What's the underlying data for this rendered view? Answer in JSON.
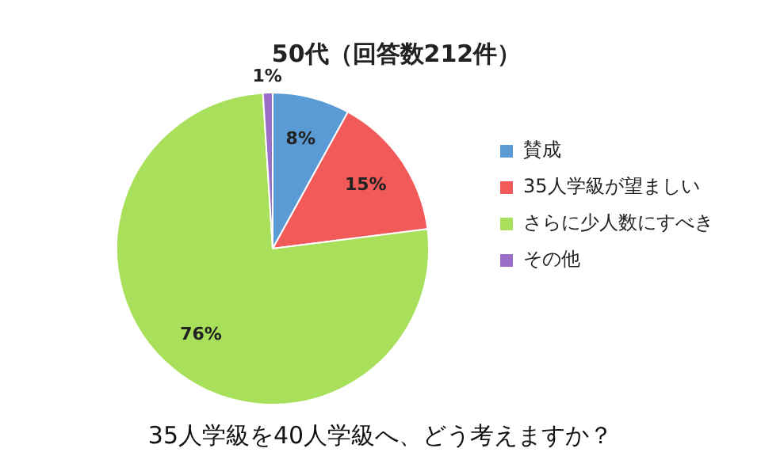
{
  "chart_data": {
    "type": "pie",
    "title": "50代（回答数212件）",
    "categories": [
      "賛成",
      "35人学級が望ましい",
      "さらに少人数にすべき",
      "その他"
    ],
    "values": [
      8,
      15,
      76,
      1
    ],
    "colors": [
      "#5b9bd5",
      "#f25a5a",
      "#a8e05c",
      "#9b6fc9"
    ],
    "value_labels": [
      "8%",
      "15%",
      "76%",
      "1%"
    ],
    "legend": "right",
    "annotations": [
      "35人学級を40人学級へ、どう考えますか？"
    ]
  }
}
